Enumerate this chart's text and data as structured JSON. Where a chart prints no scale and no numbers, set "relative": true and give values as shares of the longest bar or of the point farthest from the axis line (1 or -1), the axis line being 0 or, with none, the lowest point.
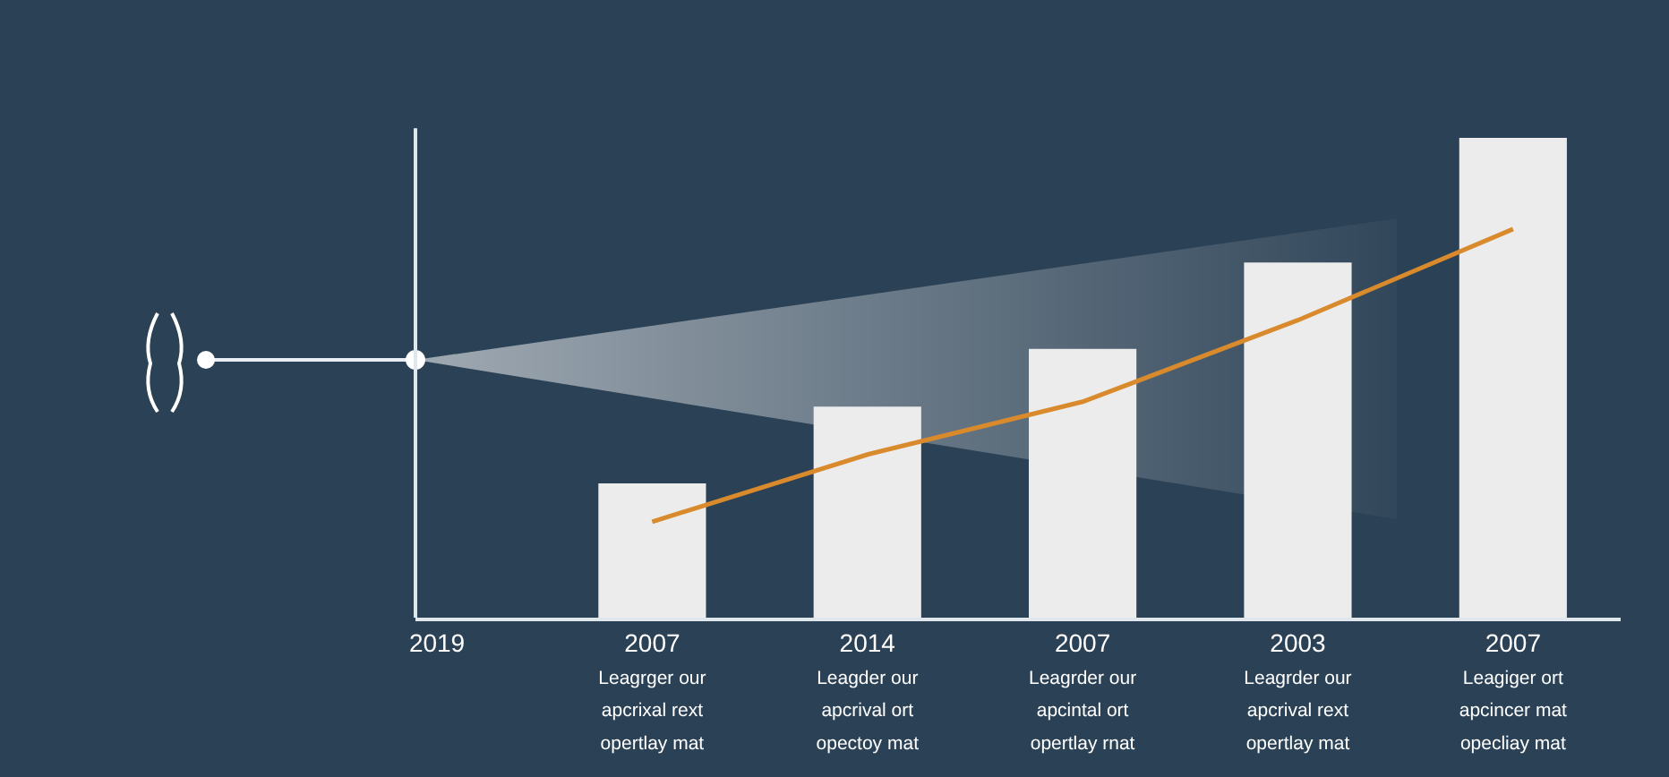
{
  "chart_data": {
    "type": "bar",
    "relative": true,
    "categories": [
      "2019",
      "2007\nLeagrger our\napcrixal rext\nopertlay mat",
      "2014\nLeagder our\napcrival ort\nopectoy mat",
      "2007\nLeagrder our\napcintal ort\nopertlay rnat",
      "2003\nLeagrder our\napcrival rext\nopertlay mat",
      "2007\nLeagiger ort\napcincer mat\nopecliay mat"
    ],
    "series": [
      {
        "color": "#ececec",
        "values": [
          null,
          0.28,
          0.44,
          0.56,
          0.74,
          1
        ]
      },
      {
        "type": "line",
        "color": "#d98a2c",
        "values": [
          null,
          0.2,
          0.34,
          0.45,
          0.62,
          0.81
        ]
      }
    ],
    "grid": false,
    "marker": "none"
  }
}
